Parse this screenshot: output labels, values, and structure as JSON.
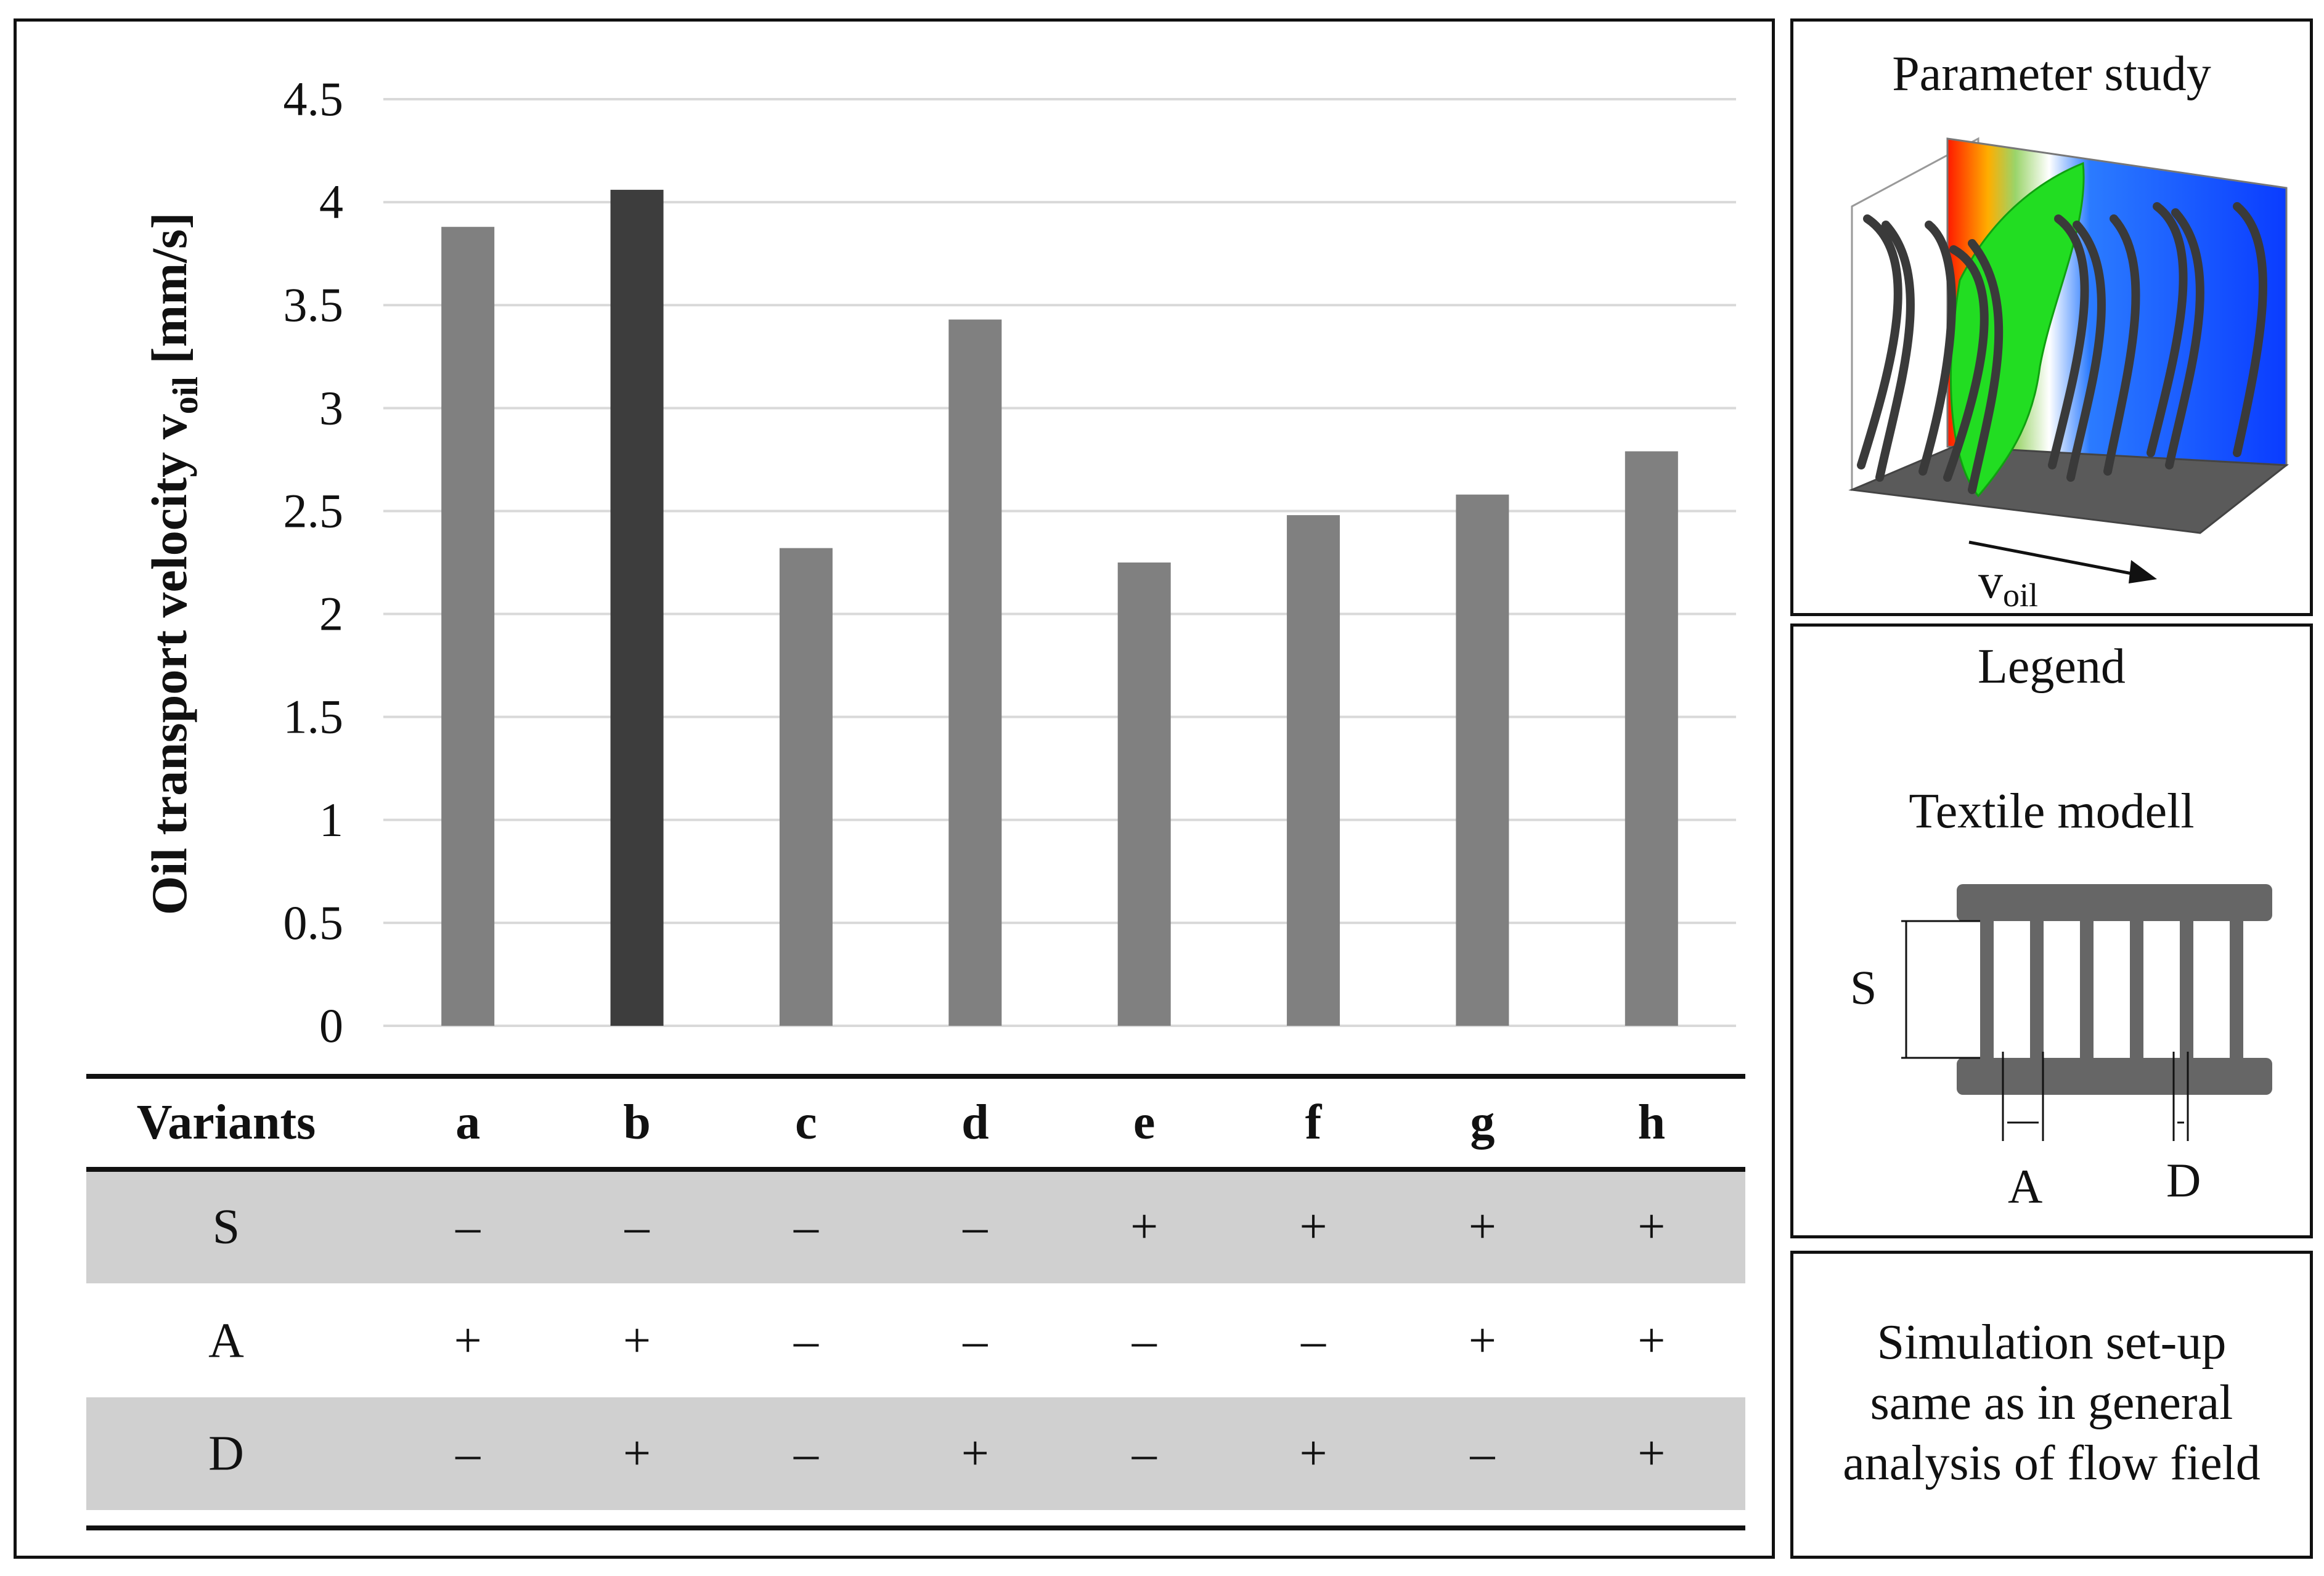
{
  "chart_data": {
    "type": "bar",
    "ylabel_main": "Oil transport velocity v",
    "ylabel_sub": "oil",
    "ylabel_unit": " [mm/s]",
    "ylim": [
      0,
      4.5
    ],
    "ytick_labels": [
      "0",
      "0.5",
      "1",
      "1.5",
      "2",
      "2.5",
      "3",
      "3.5",
      "4",
      "4.5"
    ],
    "categories": [
      "a",
      "b",
      "c",
      "d",
      "e",
      "f",
      "g",
      "h"
    ],
    "values": [
      3.88,
      4.06,
      2.32,
      3.43,
      2.25,
      2.48,
      2.58,
      2.79
    ],
    "highlight_index": 1,
    "colors": {
      "bar": "#808080",
      "highlight": "#3d3d3d",
      "grid": "#d9d9d9"
    },
    "grid": true
  },
  "table": {
    "header_label": "Variants",
    "rows": [
      {
        "label": "S",
        "values": [
          "–",
          "–",
          "–",
          "–",
          "+",
          "+",
          "+",
          "+"
        ],
        "shaded": true
      },
      {
        "label": "A",
        "values": [
          "+",
          "+",
          "–",
          "–",
          "–",
          "–",
          "+",
          "+"
        ],
        "shaded": false
      },
      {
        "label": "D",
        "values": [
          "–",
          "+",
          "–",
          "+",
          "–",
          "+",
          "–",
          "+"
        ],
        "shaded": true
      }
    ],
    "shade_color": "#d0d0d0"
  },
  "parameter_study": {
    "title": "Parameter study",
    "velocity_label": "v",
    "velocity_sub": "oil"
  },
  "legend": {
    "title": "Legend",
    "subtitle": "Textile modell",
    "label_s": "S",
    "label_a": "A",
    "label_d": "D"
  },
  "note": {
    "lines": [
      "Simulation set-up",
      "same as in general",
      "analysis of flow field"
    ]
  }
}
